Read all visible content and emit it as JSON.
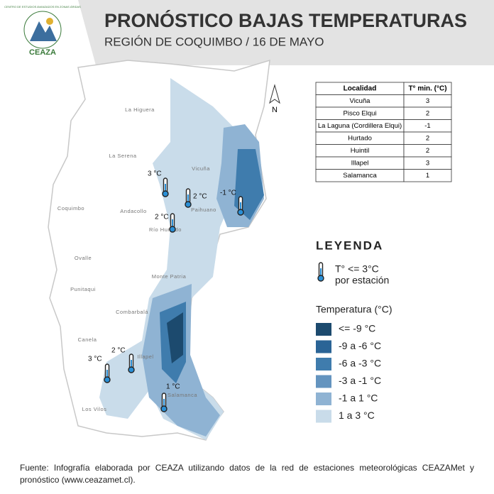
{
  "header": {
    "title": "PRONÓSTICO BAJAS TEMPERATURAS",
    "subtitle": "REGIÓN DE COQUIMBO / 16 DE MAYO",
    "logo": "CEAZA",
    "logo_arc": "CENTRO DE ESTUDIOS AVANZADOS EN ZONAS ÁRIDAS"
  },
  "north": "N",
  "table": {
    "columns": [
      "Localidad",
      "T° min. (°C)"
    ],
    "rows": [
      [
        "Vicuña",
        3
      ],
      [
        "Pisco Elqui",
        2
      ],
      [
        "La Laguna (Cordillera Elqui)",
        -1
      ],
      [
        "Hurtado",
        2
      ],
      [
        "Huintil",
        2
      ],
      [
        "Illapel",
        3
      ],
      [
        "Salamanca",
        1
      ]
    ]
  },
  "places": [
    "La Higuera",
    "La Serena",
    "Vicuña",
    "Coquimbo",
    "Andacollo",
    "Paihuano",
    "Río Hurtado",
    "Ovalle",
    "Monte Patria",
    "Punitaqui",
    "Combarbalá",
    "Canela",
    "Illapel",
    "Salamanca",
    "Los Vilos"
  ],
  "stations": [
    "3 °C",
    "2 °C",
    "-1 °C",
    "2 °C",
    "3 °C",
    "2 °C",
    "1 °C"
  ],
  "legend": {
    "title": "LEYENDA",
    "station_line1": "T° <= 3°C",
    "station_line2": "por estación",
    "scale_title": "Temperatura (°C)",
    "classes": [
      {
        "label": "<= -9 °C",
        "color": "#1c4a6e"
      },
      {
        "label": "-9 a -6 °C",
        "color": "#2a6496"
      },
      {
        "label": "-6 a -3 °C",
        "color": "#3f7cad"
      },
      {
        "label": "-3 a -1 °C",
        "color": "#6494bf"
      },
      {
        "label": "-1 a 1 °C",
        "color": "#8fb3d3"
      },
      {
        "label": "1 a 3 °C",
        "color": "#c9dcea"
      }
    ]
  },
  "footer": "Fuente: Infografía elaborada por CEAZA utilizando datos de la red de estaciones meteorológicas CEAZAMet y pronóstico (www.ceazamet.cl)."
}
